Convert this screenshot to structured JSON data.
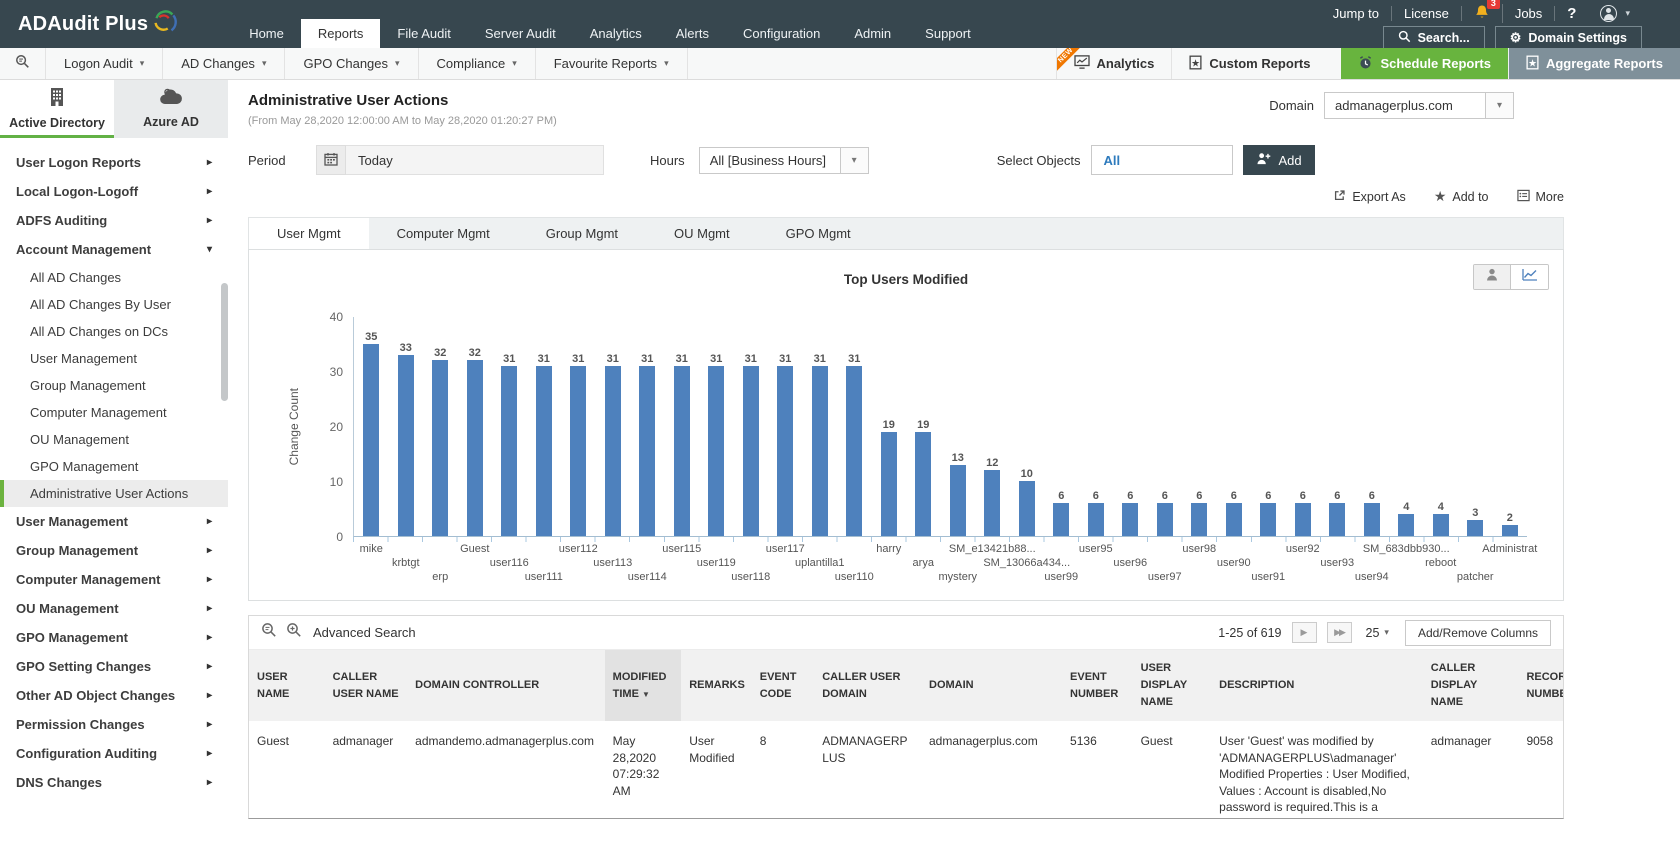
{
  "topbar": {
    "logo": "ADAudit Plus",
    "nav": [
      "Home",
      "Reports",
      "File Audit",
      "Server Audit",
      "Analytics",
      "Alerts",
      "Configuration",
      "Admin",
      "Support"
    ],
    "active_nav": "Reports",
    "utilities": {
      "jump_to": "Jump to",
      "license": "License",
      "notification_count": "3",
      "jobs": "Jobs",
      "help": "?"
    },
    "search_button": "Search...",
    "domain_settings_button": "Domain Settings"
  },
  "menubar": {
    "items": [
      "Logon Audit",
      "AD Changes",
      "GPO Changes",
      "Compliance",
      "Favourite Reports"
    ],
    "new_badge": "NEW",
    "analytics": "Analytics",
    "custom_reports": "Custom Reports",
    "schedule_reports": "Schedule Reports",
    "aggregate_reports": "Aggregate Reports"
  },
  "sidebar": {
    "tabs": [
      {
        "label": "Active Directory",
        "active": true
      },
      {
        "label": "Azure AD",
        "active": false
      }
    ],
    "items": [
      {
        "label": "User Logon Reports",
        "type": "group",
        "state": "collapsed"
      },
      {
        "label": "Local Logon-Logoff",
        "type": "group",
        "state": "collapsed"
      },
      {
        "label": "ADFS Auditing",
        "type": "group",
        "state": "collapsed"
      },
      {
        "label": "Account Management",
        "type": "group",
        "state": "expanded"
      },
      {
        "label": "All AD Changes",
        "type": "sub"
      },
      {
        "label": "All AD Changes By User",
        "type": "sub"
      },
      {
        "label": "All AD Changes on DCs",
        "type": "sub"
      },
      {
        "label": "User Management",
        "type": "sub"
      },
      {
        "label": "Group Management",
        "type": "sub"
      },
      {
        "label": "Computer Management",
        "type": "sub"
      },
      {
        "label": "OU Management",
        "type": "sub"
      },
      {
        "label": "GPO Management",
        "type": "sub"
      },
      {
        "label": "Administrative User Actions",
        "type": "sub",
        "selected": true
      },
      {
        "label": "User Management",
        "type": "group",
        "state": "collapsed"
      },
      {
        "label": "Group Management",
        "type": "group",
        "state": "collapsed"
      },
      {
        "label": "Computer Management",
        "type": "group",
        "state": "collapsed"
      },
      {
        "label": "OU Management",
        "type": "group",
        "state": "collapsed"
      },
      {
        "label": "GPO Management",
        "type": "group",
        "state": "collapsed"
      },
      {
        "label": "GPO Setting Changes",
        "type": "group",
        "state": "collapsed"
      },
      {
        "label": "Other AD Object Changes",
        "type": "group",
        "state": "collapsed"
      },
      {
        "label": "Permission Changes",
        "type": "group",
        "state": "collapsed"
      },
      {
        "label": "Configuration Auditing",
        "type": "group",
        "state": "collapsed"
      },
      {
        "label": "DNS Changes",
        "type": "group",
        "state": "collapsed"
      }
    ]
  },
  "report": {
    "title": "Administrative User Actions",
    "subtitle": "(From May 28,2020 12:00:00 AM to May 28,2020 01:20:27 PM)",
    "domain_label": "Domain",
    "domain_value": "admanagerplus.com",
    "period_label": "Period",
    "period_value": "Today",
    "hours_label": "Hours",
    "hours_value": "All [Business Hours]",
    "select_objects_label": "Select Objects",
    "select_objects_value": "All",
    "add_button": "Add",
    "export_as": "Export As",
    "add_to": "Add to",
    "more": "More",
    "tabs": [
      "User Mgmt",
      "Computer Mgmt",
      "Group Mgmt",
      "OU Mgmt",
      "GPO Mgmt"
    ],
    "active_tab": "User Mgmt"
  },
  "chart_data": {
    "type": "bar",
    "title": "Top Users Modified",
    "xlabel": "",
    "ylabel": "Change Count",
    "ylim": [
      0,
      40
    ],
    "yticks": [
      0,
      10,
      20,
      30,
      40
    ],
    "grid": false,
    "legend": "none",
    "bar_color": "#4e81bd",
    "categories": [
      "mike",
      "krbtgt",
      "erp",
      "Guest",
      "user116",
      "user111",
      "user112",
      "user113",
      "user114",
      "user115",
      "user119",
      "user118",
      "user117",
      "uplantilla1",
      "user110",
      "harry",
      "arya",
      "mystery",
      "SM_e13421b88...",
      "SM_13066a434...",
      "user99",
      "user95",
      "user96",
      "user97",
      "user98",
      "user90",
      "user91",
      "user92",
      "user93",
      "user94",
      "SM_683dbb930...",
      "reboot",
      "patcher",
      "Administrat"
    ],
    "values": [
      35,
      33,
      32,
      32,
      31,
      31,
      31,
      31,
      31,
      31,
      31,
      31,
      31,
      31,
      31,
      19,
      19,
      13,
      12,
      10,
      6,
      6,
      6,
      6,
      6,
      6,
      6,
      6,
      6,
      6,
      4,
      4,
      3,
      2
    ]
  },
  "table": {
    "advanced_search": "Advanced Search",
    "pagination": "1-25 of 619",
    "page_size": "25",
    "add_remove_columns": "Add/Remove Columns",
    "sorted_column": "MODIFIED TIME",
    "headers": [
      "USER NAME",
      "CALLER USER NAME",
      "DOMAIN CONTROLLER",
      "MODIFIED TIME",
      "REMARKS",
      "EVENT CODE",
      "CALLER USER DOMAIN",
      "DOMAIN",
      "EVENT NUMBER",
      "USER DISPLAY NAME",
      "DESCRIPTION",
      "CALLER DISPLAY NAME",
      "RECORD NUMBER"
    ],
    "rows": [
      [
        "Guest",
        "admanager",
        "admandemo.admanagerplus.com",
        "May 28,2020 07:29:32 AM",
        "User Modified",
        "8",
        "ADMANAGERPLUS",
        "admanagerplus.com",
        "5136",
        "Guest",
        "User 'Guest' was modified by 'ADMANAGERPLUS\\admanager' Modified Properties : User Modified, Values : Account is disabled,No password is required.This is a default",
        "admanager",
        "9058"
      ]
    ]
  },
  "colors": {
    "topbar": "#37474f",
    "accent_green": "#68b43e",
    "bar_blue": "#4e81bd",
    "ribbon_orange": "#f07700"
  }
}
